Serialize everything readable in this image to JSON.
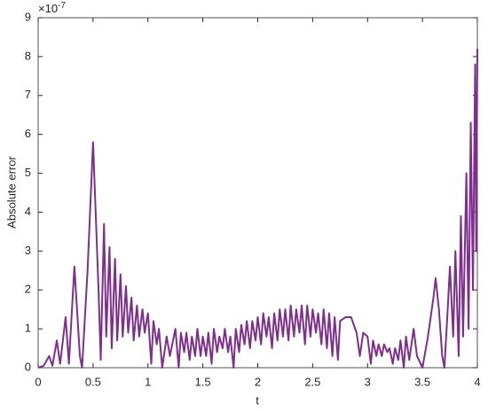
{
  "chart_data": {
    "type": "line",
    "x_label": "t",
    "y_label": "Absolute error",
    "axis_multiplier": {
      "base": "×10",
      "exponent": "-7"
    },
    "xlim": [
      0,
      4
    ],
    "ylim": [
      0,
      9
    ],
    "xticks": [
      0,
      0.5,
      1,
      1.5,
      2,
      2.5,
      3,
      3.5,
      4
    ],
    "yticks": [
      0,
      1,
      2,
      3,
      4,
      5,
      6,
      7,
      8,
      9
    ],
    "series": [
      {
        "color": "#7e2f8e",
        "x": [
          0,
          0.05,
          0.1,
          0.13,
          0.17,
          0.2,
          0.25,
          0.28,
          0.33,
          0.38,
          0.4,
          0.45,
          0.5,
          0.55,
          0.57,
          0.6,
          0.62,
          0.65,
          0.67,
          0.7,
          0.72,
          0.75,
          0.77,
          0.8,
          0.82,
          0.85,
          0.87,
          0.9,
          0.92,
          0.95,
          0.97,
          1.0,
          1.03,
          1.05,
          1.08,
          1.1,
          1.13,
          1.17,
          1.2,
          1.25,
          1.28,
          1.3,
          1.33,
          1.35,
          1.38,
          1.4,
          1.43,
          1.45,
          1.48,
          1.5,
          1.53,
          1.55,
          1.58,
          1.6,
          1.63,
          1.65,
          1.68,
          1.7,
          1.73,
          1.75,
          1.78,
          1.8,
          1.83,
          1.85,
          1.88,
          1.9,
          1.93,
          1.95,
          1.98,
          2.0,
          2.03,
          2.05,
          2.08,
          2.1,
          2.13,
          2.15,
          2.18,
          2.2,
          2.23,
          2.25,
          2.28,
          2.3,
          2.33,
          2.35,
          2.38,
          2.4,
          2.43,
          2.45,
          2.48,
          2.5,
          2.53,
          2.55,
          2.58,
          2.6,
          2.63,
          2.65,
          2.68,
          2.7,
          2.73,
          2.75,
          2.8,
          2.85,
          2.9,
          2.93,
          2.96,
          3.0,
          3.03,
          3.05,
          3.08,
          3.1,
          3.13,
          3.15,
          3.18,
          3.2,
          3.23,
          3.25,
          3.28,
          3.3,
          3.33,
          3.35,
          3.38,
          3.42,
          3.45,
          3.5,
          3.55,
          3.6,
          3.62,
          3.65,
          3.68,
          3.7,
          3.73,
          3.75,
          3.78,
          3.8,
          3.83,
          3.85,
          3.87,
          3.9,
          3.92,
          3.94,
          3.96,
          3.98,
          3.99,
          4.0
        ],
        "values": [
          0,
          0.05,
          0.3,
          0.05,
          0.7,
          0.1,
          1.3,
          0.1,
          2.6,
          0.3,
          0.0,
          2.5,
          5.8,
          2.0,
          0.2,
          3.7,
          0.8,
          3.1,
          0.5,
          2.8,
          0.7,
          2.4,
          0.8,
          2.1,
          0.9,
          1.8,
          0.7,
          1.6,
          0.8,
          1.5,
          0.9,
          1.4,
          0.1,
          1.2,
          0.6,
          1.0,
          0.0,
          0.8,
          0.3,
          1.0,
          0.0,
          0.9,
          0.4,
          0.9,
          0.2,
          0.8,
          0.3,
          1.0,
          0.3,
          0.8,
          0.3,
          0.9,
          0.1,
          1.0,
          0.4,
          0.8,
          0.5,
          1.0,
          0.4,
          0.8,
          0.0,
          1.0,
          0.4,
          1.1,
          0.6,
          1.2,
          0.5,
          1.2,
          0.7,
          1.3,
          0.6,
          1.4,
          0.8,
          1.3,
          0.5,
          1.4,
          0.7,
          1.5,
          0.8,
          1.5,
          0.7,
          1.6,
          0.8,
          1.5,
          0.9,
          1.6,
          0.6,
          1.6,
          0.8,
          1.5,
          0.9,
          1.4,
          0.6,
          1.5,
          0.5,
          1.4,
          0.3,
          1.3,
          0.2,
          1.2,
          1.3,
          1.3,
          0.9,
          0.3,
          0.9,
          0.8,
          0.1,
          0.7,
          0.3,
          0.6,
          0.3,
          0.6,
          0.4,
          0.5,
          0.1,
          0.5,
          0.2,
          0.7,
          0.0,
          0.8,
          0.2,
          1.0,
          0.3,
          0.0,
          0.8,
          1.8,
          2.3,
          1.5,
          0.3,
          0.0,
          1.5,
          2.6,
          0.8,
          3.0,
          0.3,
          3.9,
          0.8,
          5.0,
          1.0,
          6.3,
          2.0,
          7.8,
          3.0,
          8.2
        ]
      }
    ]
  }
}
